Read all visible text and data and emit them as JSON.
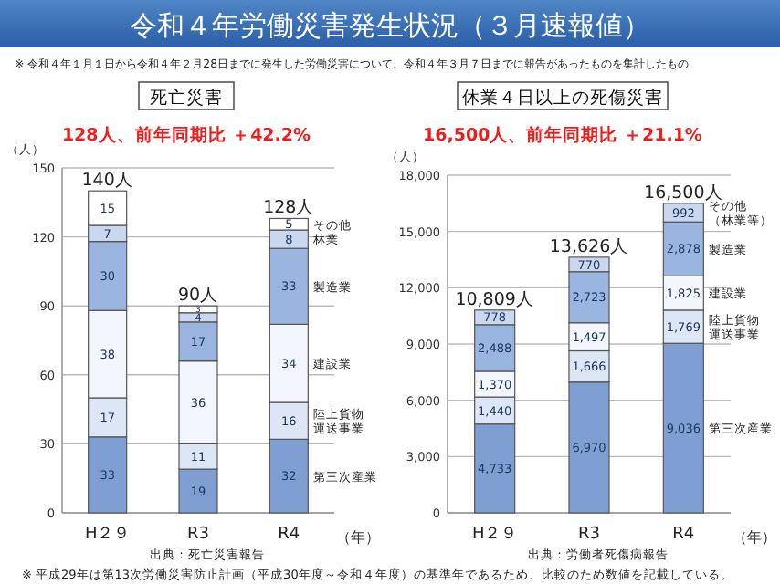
{
  "chart_data": [
    {
      "type": "bar",
      "stacked": true,
      "title": "死亡災害",
      "subtitle": "128人、前年同期比 ＋42.2%",
      "ylabel": "（人）",
      "xlabel": "（年）",
      "categories": [
        "H２９",
        "R3",
        "R4"
      ],
      "series": [
        {
          "name": "第三次産業",
          "color": "#7f9fd3",
          "values": [
            33,
            19,
            32
          ]
        },
        {
          "name": "陸上貨物運送事業",
          "color": "#dce6f4",
          "values": [
            17,
            11,
            16
          ]
        },
        {
          "name": "建設業",
          "color": "#f3f6fc",
          "values": [
            38,
            36,
            34
          ]
        },
        {
          "name": "製造業",
          "color": "#9ab5df",
          "values": [
            30,
            17,
            33
          ]
        },
        {
          "name": "林業",
          "color": "#c9d8ef",
          "values": [
            7,
            4,
            8
          ]
        },
        {
          "name": "その他",
          "color": "#ffffff",
          "values": [
            15,
            3,
            5
          ]
        }
      ],
      "ylim": [
        0,
        150
      ],
      "yticks": [
        0,
        30,
        60,
        90,
        120,
        150
      ],
      "grid": "y",
      "legend": false,
      "data_labels": true,
      "totals": [
        "140人",
        "90人",
        "128人"
      ],
      "annotations": [
        "令和４年労働災害発生状況（３月速報値）",
        "※ 令和４年１月１日から令和４年２月28日までに発生した労働災害について、令和４年３月７日までに報告があったものを集計したもの",
        "出典：死亡災害報告"
      ]
    },
    {
      "type": "bar",
      "stacked": true,
      "title": "休業４日以上の死傷災害",
      "subtitle": "16,500人、前年同期比 ＋21.1%",
      "ylabel": "（人）",
      "xlabel": "（年）",
      "categories": [
        "H２９",
        "R3",
        "R4"
      ],
      "series": [
        {
          "name": "第三次産業",
          "color": "#7f9fd3",
          "values": [
            4733,
            6970,
            9036
          ],
          "value_labels": [
            "4,733",
            "6,970",
            "9,036"
          ]
        },
        {
          "name": "陸上貨物運送事業",
          "color": "#dce6f4",
          "values": [
            1440,
            1666,
            1769
          ],
          "value_labels": [
            "1,440",
            "1,666",
            "1,769"
          ]
        },
        {
          "name": "建設業",
          "color": "#f3f6fc",
          "values": [
            1370,
            1497,
            1825
          ],
          "value_labels": [
            "1,370",
            "1,497",
            "1,825"
          ]
        },
        {
          "name": "製造業",
          "color": "#9ab5df",
          "values": [
            2488,
            2723,
            2878
          ],
          "value_labels": [
            "2,488",
            "2,723",
            "2,878"
          ]
        },
        {
          "name": "その他（林業等）",
          "color": "#c9d8ef",
          "values": [
            778,
            770,
            992
          ],
          "value_labels": [
            "778",
            "770",
            "992"
          ]
        }
      ],
      "ylim": [
        0,
        18000
      ],
      "yticks": [
        {
          "value": 0,
          "label": "0"
        },
        {
          "value": 3000,
          "label": "3,000"
        },
        {
          "value": 6000,
          "label": "6,000"
        },
        {
          "value": 9000,
          "label": "9,000"
        },
        {
          "value": 12000,
          "label": "12,000"
        },
        {
          "value": 15000,
          "label": "15,000"
        },
        {
          "value": 18000,
          "label": "18,000"
        }
      ],
      "grid": "y",
      "legend": false,
      "totals": [
        "10,809人",
        "13,626人",
        "16,500人"
      ],
      "annotations": [
        "出典：労働者死傷病報告",
        "※ 平成29年は第13次労働災害防止計画（平成30年度～令和４年度）の基準年であるため、比較のため数値を記載している。"
      ]
    }
  ]
}
